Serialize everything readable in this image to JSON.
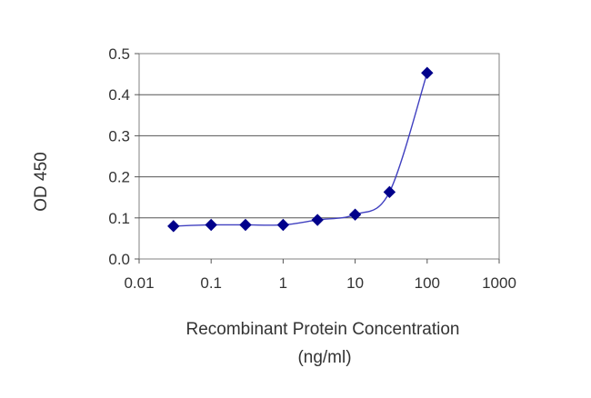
{
  "chart_data": {
    "type": "scatter",
    "title": "",
    "xlabel": "Recombinant Protein Concentration",
    "xlabel_unit": "(ng/ml)",
    "ylabel": "OD 450",
    "x_scale": "log",
    "xlim": [
      0.01,
      1000
    ],
    "ylim": [
      0.0,
      0.5
    ],
    "x_ticks": [
      0.01,
      0.1,
      1,
      10,
      100,
      1000
    ],
    "x_tick_labels": [
      "0.01",
      "0.1",
      "1",
      "10",
      "100",
      "1000"
    ],
    "y_ticks": [
      0.0,
      0.1,
      0.2,
      0.3,
      0.4,
      0.5
    ],
    "y_tick_labels": [
      "0.0",
      "0.1",
      "0.2",
      "0.3",
      "0.4",
      "0.5"
    ],
    "grid": "horizontal",
    "legend": "none",
    "series": [
      {
        "marker": "diamond",
        "color": "#00008b",
        "line_color": "#4040c0",
        "smooth_line": true,
        "x": [
          0.03,
          0.1,
          0.3,
          1,
          3,
          10,
          30,
          100
        ],
        "y": [
          0.08,
          0.083,
          0.083,
          0.083,
          0.095,
          0.108,
          0.163,
          0.453
        ]
      }
    ]
  }
}
